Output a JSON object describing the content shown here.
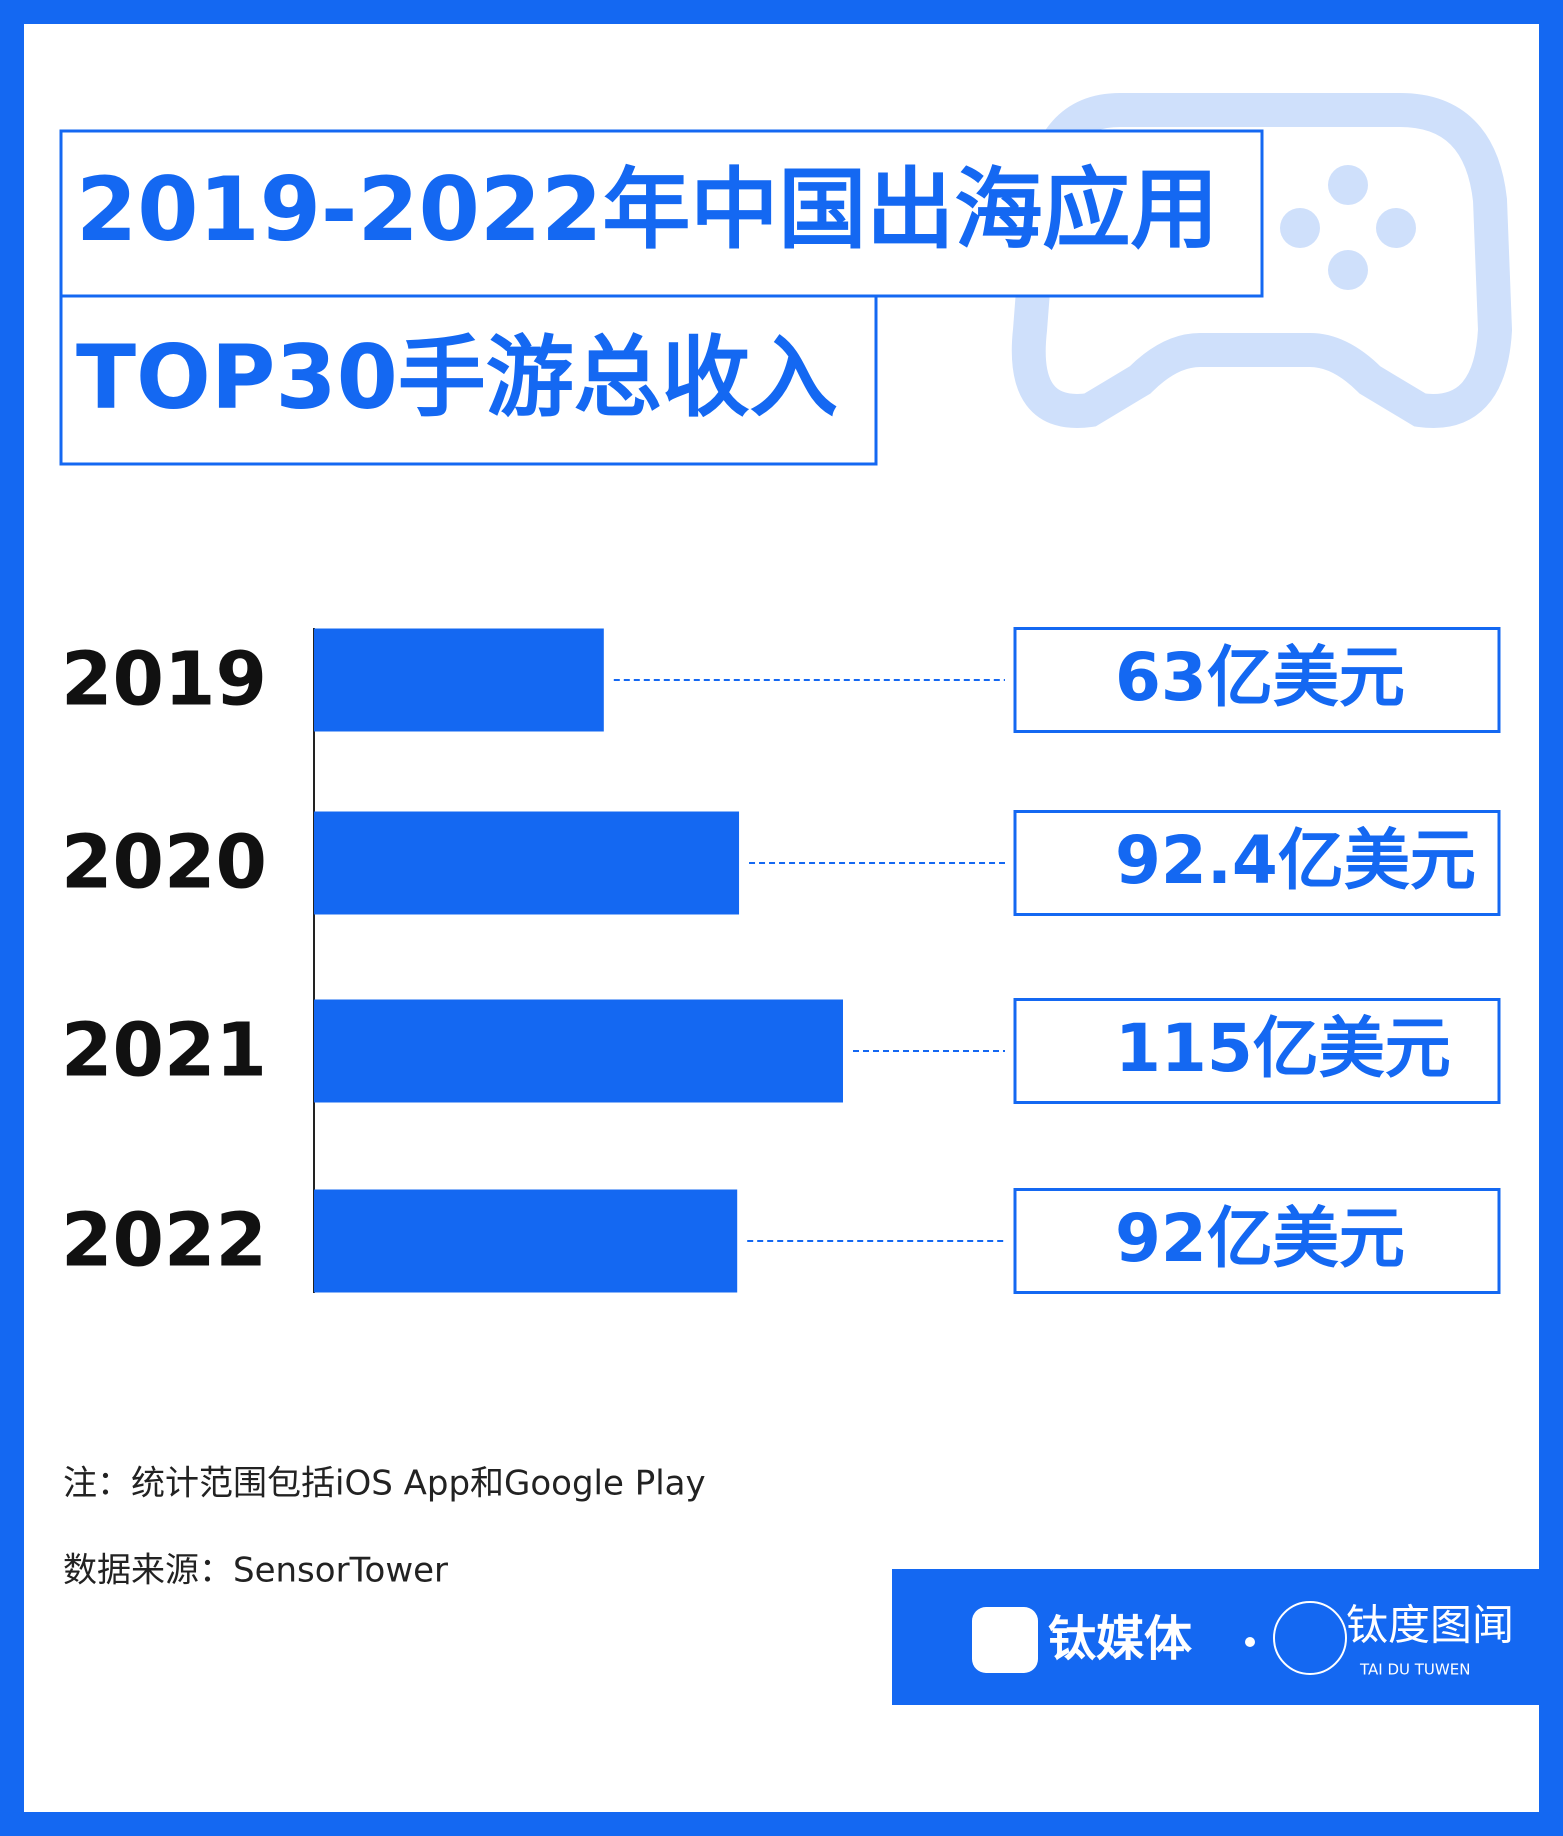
{
  "chart_data": {
    "type": "bar",
    "orientation": "horizontal",
    "title": "2019-2022年中国出海应用",
    "subtitle": "TOP30手游总收入",
    "categories": [
      "2019",
      "2020",
      "2021",
      "2022"
    ],
    "values": [
      63,
      92.4,
      115,
      92
    ],
    "value_labels": [
      "63亿美元",
      "92.4亿美元",
      "115亿美元",
      "92亿美元"
    ],
    "color": "#1468f2"
  },
  "notes": [
    "注：统计范围包括iOS App和Google Play",
    "数据来源：SensorTower"
  ],
  "branding": {
    "brand": "钛媒体",
    "partner": "钛度图闻",
    "partner_sub": "TAI DU TUWEN"
  }
}
